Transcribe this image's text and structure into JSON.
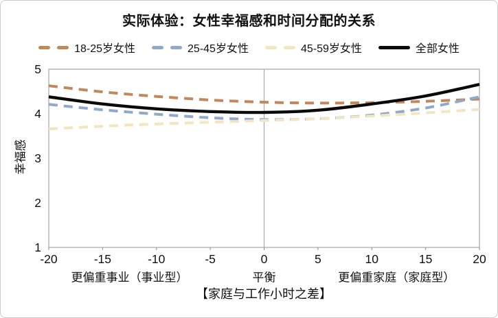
{
  "title": "实际体验：女性幸福感和时间分配的关系",
  "chart_data": {
    "type": "line",
    "title": "实际体验：女性幸福感和时间分配的关系",
    "xlabel": "【家庭与工作小时之差】",
    "ylabel": "幸福感",
    "xlim": [
      -20,
      20
    ],
    "ylim": [
      1,
      5
    ],
    "x_ticks": [
      "-20",
      "-15",
      "-10",
      "-5",
      "0",
      "5",
      "10",
      "15",
      "20"
    ],
    "y_ticks": [
      "1",
      "2",
      "3",
      "4",
      "5"
    ],
    "x": [
      -20,
      -15,
      -10,
      -5,
      0,
      5,
      10,
      15,
      20
    ],
    "series": [
      {
        "name": "18-25岁女性",
        "color": "#C3875C",
        "dashed": true,
        "values": [
          4.63,
          4.49,
          4.39,
          4.31,
          4.26,
          4.24,
          4.25,
          4.28,
          4.33
        ]
      },
      {
        "name": "25-45岁女性",
        "color": "#8FA9CC",
        "dashed": true,
        "values": [
          4.21,
          4.09,
          3.99,
          3.91,
          3.87,
          3.89,
          3.97,
          4.13,
          4.38
        ]
      },
      {
        "name": "45-59岁女性",
        "color": "#F3E5C0",
        "dashed": true,
        "values": [
          3.66,
          3.72,
          3.77,
          3.81,
          3.85,
          3.89,
          3.95,
          4.02,
          4.1
        ]
      },
      {
        "name": "全部女性",
        "color": "#0a0a0a",
        "dashed": false,
        "values": [
          4.38,
          4.22,
          4.11,
          4.05,
          4.03,
          4.08,
          4.22,
          4.4,
          4.66
        ]
      }
    ],
    "zone_labels": [
      {
        "label": "更偏重事业（事业型）",
        "x": -12.5
      },
      {
        "label": "平衡",
        "x": 0
      },
      {
        "label": "更偏重家庭（家庭型）",
        "x": 12.3
      }
    ],
    "reference_line_x": 0,
    "legend_position": "top",
    "grid": "single vertical reference line at x=0",
    "plot_border_color": "#a6a6a6",
    "reference_line_color": "#ababab",
    "tick_color": "#8c8c8c",
    "text_color": "#111111"
  }
}
